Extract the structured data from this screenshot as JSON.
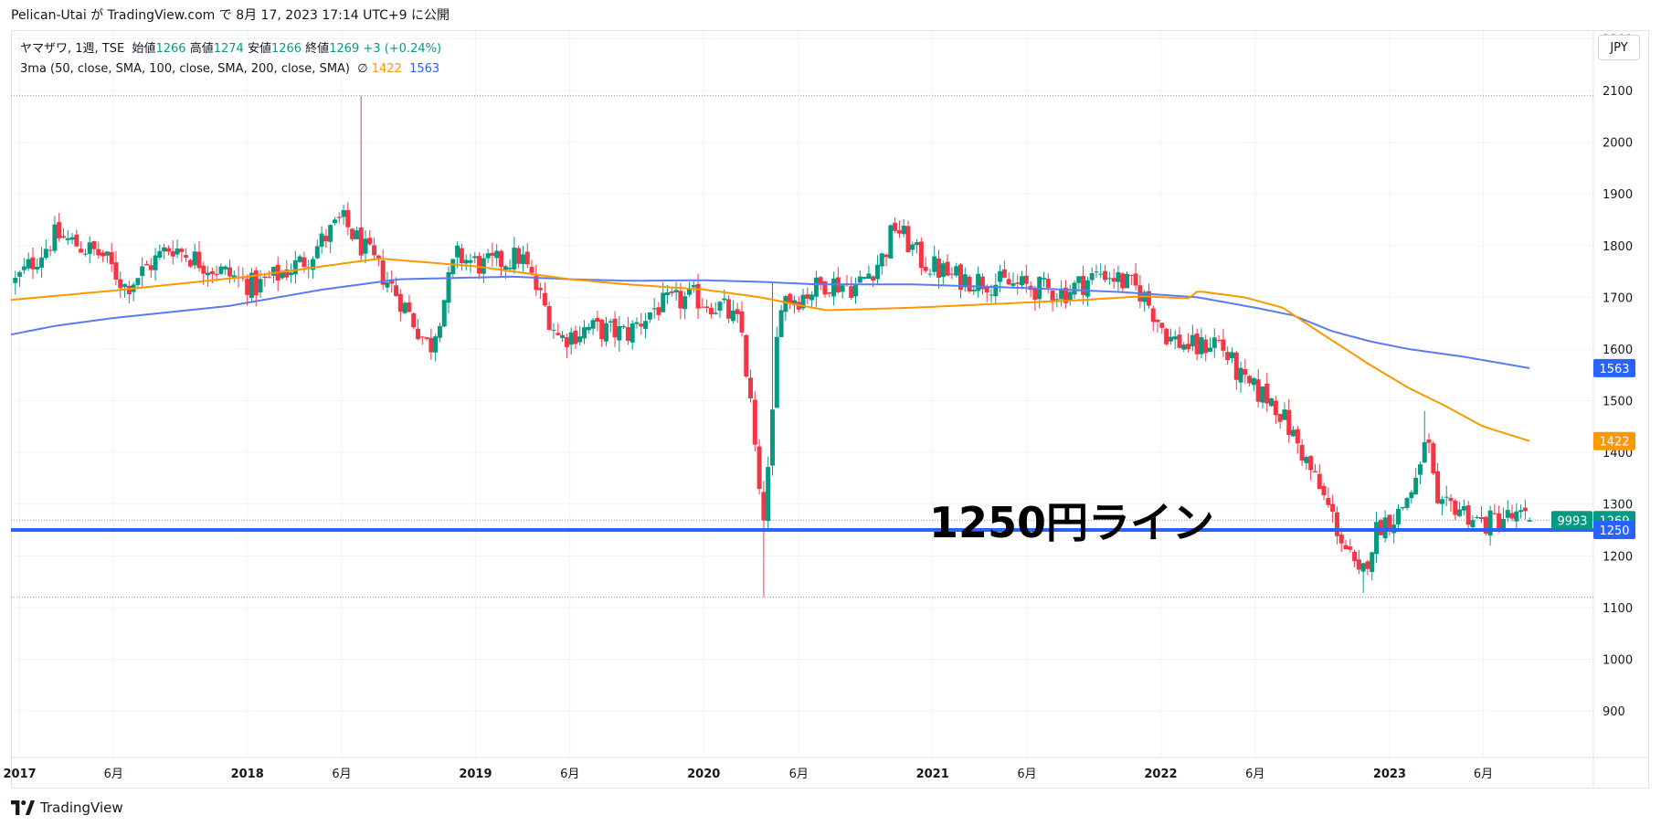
{
  "header": {
    "publish_line": "Pelican-Utai が TradingView.com で 8月 17, 2023 17:14 UTC+9 に公開"
  },
  "legend": {
    "symbol_line_prefix": "ヤマザワ, 1週, TSE  始値",
    "open": "1266",
    "high_label": " 高値",
    "high": "1274",
    "low_label": " 安値",
    "low": "1266",
    "close_label": " 終値",
    "close": "1269",
    "change": " +3 (+0.24%)",
    "indicator_line": "3ma (50, close, SMA, 100, close, SMA, 200, close, SMA)  ∅ ",
    "ma100_value": "1422",
    "ma200_value": "1563"
  },
  "currency_button": "JPY",
  "annotation": "1250円ライン",
  "footer": {
    "brand": "TradingView"
  },
  "colors": {
    "up": "#089981",
    "down": "#f23645",
    "ma100": "#ff9800",
    "ma200": "#5b7cf0",
    "hline": "#2962ff",
    "grid": "#f0f3fa"
  },
  "icons": {
    "logo": "tradingview-logo-icon",
    "null_symbol": "empty-set-icon"
  },
  "chart_data": {
    "type": "candlestick",
    "title": "ヤマザワ, 1週, TSE",
    "ylim": [
      810,
      2215
    ],
    "y_ticks": [
      900,
      1000,
      1100,
      1200,
      1300,
      1400,
      1500,
      1600,
      1700,
      1800,
      1900,
      2000,
      2100,
      2200
    ],
    "x_range": [
      "2016-12-19",
      "2023-11-24"
    ],
    "x_ticks": [
      {
        "date": "2017-01-02",
        "label": "2017"
      },
      {
        "date": "2017-06-01",
        "label": "6月"
      },
      {
        "date": "2018-01-01",
        "label": "2018"
      },
      {
        "date": "2018-06-01",
        "label": "6月"
      },
      {
        "date": "2019-01-01",
        "label": "2019"
      },
      {
        "date": "2019-06-01",
        "label": "6月"
      },
      {
        "date": "2020-01-01",
        "label": "2020"
      },
      {
        "date": "2020-06-01",
        "label": "6月"
      },
      {
        "date": "2021-01-01",
        "label": "2021"
      },
      {
        "date": "2021-06-01",
        "label": "6月"
      },
      {
        "date": "2022-01-01",
        "label": "2022"
      },
      {
        "date": "2022-06-01",
        "label": "6月"
      },
      {
        "date": "2023-01-02",
        "label": "2023"
      },
      {
        "date": "2023-06-01",
        "label": "6月"
      }
    ],
    "dotted_lines": [
      2090,
      1269,
      1120
    ],
    "horizontal_line": 1250,
    "price_tags": [
      {
        "value": 1563,
        "label": "1563",
        "color": "#2962ff"
      },
      {
        "value": 1422,
        "label": "1422",
        "color": "#ff9800"
      },
      {
        "value": 1269,
        "label": "1269",
        "color": "#089981",
        "prefix": "9993"
      },
      {
        "value": 1250,
        "label": "1250",
        "color": "#2962ff"
      }
    ],
    "close_anchors": [
      [
        "2016-12-26",
        1730
      ],
      [
        "2017-03-01",
        1820
      ],
      [
        "2017-05-15",
        1780
      ],
      [
        "2017-06-20",
        1720
      ],
      [
        "2017-09-01",
        1800
      ],
      [
        "2017-11-01",
        1760
      ],
      [
        "2018-01-15",
        1720
      ],
      [
        "2018-04-01",
        1770
      ],
      [
        "2018-06-01",
        1850
      ],
      [
        "2018-07-15",
        1780
      ],
      [
        "2018-09-01",
        1700
      ],
      [
        "2018-10-20",
        1600
      ],
      [
        "2018-12-01",
        1780
      ],
      [
        "2019-01-15",
        1760
      ],
      [
        "2019-03-15",
        1780
      ],
      [
        "2019-05-15",
        1620
      ],
      [
        "2019-07-01",
        1640
      ],
      [
        "2019-09-01",
        1630
      ],
      [
        "2019-10-15",
        1680
      ],
      [
        "2019-12-15",
        1700
      ],
      [
        "2020-01-31",
        1680
      ],
      [
        "2020-03-01",
        1640
      ],
      [
        "2020-03-20",
        1450
      ],
      [
        "2020-04-03",
        1250
      ],
      [
        "2020-04-17",
        1400
      ],
      [
        "2020-05-01",
        1700
      ],
      [
        "2020-06-01",
        1700
      ],
      [
        "2020-07-15",
        1730
      ],
      [
        "2020-09-01",
        1720
      ],
      [
        "2020-10-15",
        1780
      ],
      [
        "2020-11-01",
        1840
      ],
      [
        "2020-12-15",
        1770
      ],
      [
        "2021-02-01",
        1740
      ],
      [
        "2021-04-01",
        1730
      ],
      [
        "2021-06-01",
        1720
      ],
      [
        "2021-08-01",
        1710
      ],
      [
        "2021-10-01",
        1750
      ],
      [
        "2021-12-01",
        1710
      ],
      [
        "2022-01-15",
        1620
      ],
      [
        "2022-03-01",
        1600
      ],
      [
        "2022-04-01",
        1620
      ],
      [
        "2022-05-15",
        1530
      ],
      [
        "2022-07-01",
        1500
      ],
      [
        "2022-08-15",
        1400
      ],
      [
        "2022-10-01",
        1280
      ],
      [
        "2022-11-15",
        1150
      ],
      [
        "2022-12-15",
        1260
      ],
      [
        "2023-01-15",
        1280
      ],
      [
        "2023-02-20",
        1360
      ],
      [
        "2023-03-01",
        1450
      ],
      [
        "2023-03-20",
        1280
      ],
      [
        "2023-04-15",
        1300
      ],
      [
        "2023-06-01",
        1260
      ],
      [
        "2023-07-01",
        1275
      ],
      [
        "2023-08-14",
        1269
      ]
    ],
    "ma100_anchors": [
      [
        "2016-12-19",
        1695
      ],
      [
        "2017-06-01",
        1713
      ],
      [
        "2018-01-01",
        1740
      ],
      [
        "2018-06-01",
        1765
      ],
      [
        "2018-08-01",
        1775
      ],
      [
        "2019-01-01",
        1760
      ],
      [
        "2019-06-01",
        1735
      ],
      [
        "2019-09-01",
        1725
      ],
      [
        "2020-01-01",
        1715
      ],
      [
        "2020-04-01",
        1700
      ],
      [
        "2020-06-01",
        1685
      ],
      [
        "2020-07-15",
        1675
      ],
      [
        "2020-12-01",
        1680
      ],
      [
        "2021-03-01",
        1685
      ],
      [
        "2021-09-01",
        1695
      ],
      [
        "2021-12-01",
        1702
      ],
      [
        "2022-02-15",
        1698
      ],
      [
        "2022-03-01",
        1712
      ],
      [
        "2022-05-15",
        1700
      ],
      [
        "2022-07-15",
        1680
      ],
      [
        "2022-09-15",
        1630
      ],
      [
        "2022-12-01",
        1570
      ],
      [
        "2023-02-01",
        1525
      ],
      [
        "2023-04-01",
        1490
      ],
      [
        "2023-06-01",
        1450
      ],
      [
        "2023-08-14",
        1422
      ]
    ],
    "ma200_anchors": [
      [
        "2016-12-19",
        1628
      ],
      [
        "2017-03-01",
        1645
      ],
      [
        "2017-06-01",
        1660
      ],
      [
        "2017-12-01",
        1683
      ],
      [
        "2018-05-01",
        1715
      ],
      [
        "2018-09-01",
        1735
      ],
      [
        "2019-03-01",
        1740
      ],
      [
        "2019-06-01",
        1735
      ],
      [
        "2019-09-01",
        1732
      ],
      [
        "2020-01-01",
        1733
      ],
      [
        "2020-04-01",
        1730
      ],
      [
        "2020-07-01",
        1725
      ],
      [
        "2020-12-01",
        1725
      ],
      [
        "2021-06-01",
        1718
      ],
      [
        "2021-11-01",
        1710
      ],
      [
        "2022-03-01",
        1700
      ],
      [
        "2022-06-01",
        1680
      ],
      [
        "2022-08-01",
        1665
      ],
      [
        "2022-10-01",
        1635
      ],
      [
        "2022-12-01",
        1615
      ],
      [
        "2023-02-01",
        1600
      ],
      [
        "2023-05-01",
        1585
      ],
      [
        "2023-08-14",
        1563
      ]
    ]
  }
}
